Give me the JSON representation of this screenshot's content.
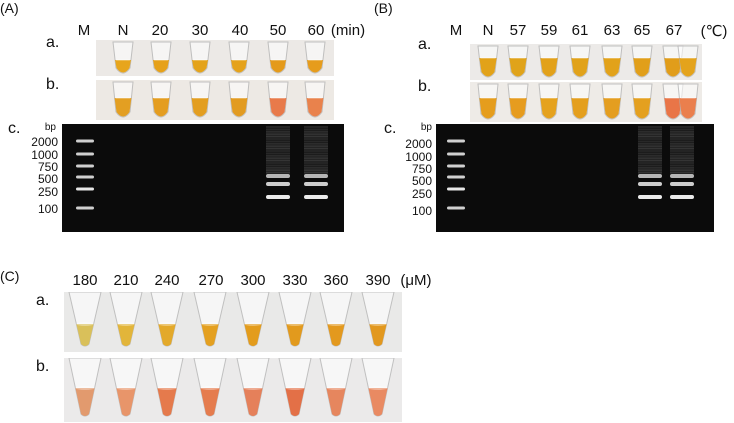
{
  "panel_a": {
    "label": "(A)",
    "lane_labels": [
      "M",
      "N",
      "20",
      "30",
      "40",
      "50",
      "60"
    ],
    "unit": "(min)",
    "row_a_label": "a.",
    "row_b_label": "b.",
    "row_c_label": "c.",
    "bp_unit": "bp",
    "ladder": [
      "2000",
      "1000",
      "750",
      "500",
      "250",
      "100"
    ],
    "row_a_colors": [
      "#e7a51c",
      "#e6a11a",
      "#e4a31b",
      "#e5a21b",
      "#e49a1a",
      "#e69c1c"
    ],
    "row_b_colors": [
      "#e39f22",
      "#e49d20",
      "#e39e20",
      "#e29b21",
      "#e87a4a",
      "#e9824c"
    ],
    "amplified_lanes": [
      5,
      6
    ]
  },
  "panel_b": {
    "label": "(B)",
    "lane_labels": [
      "M",
      "N",
      "57",
      "59",
      "61",
      "63",
      "65",
      "67"
    ],
    "unit": "(℃)",
    "row_a_label": "a.",
    "row_b_label": "b.",
    "row_c_label": "c.",
    "bp_unit": "bp",
    "ladder": [
      "2000",
      "1000",
      "750",
      "500",
      "250",
      "100"
    ],
    "row_a_colors": [
      "#e2a219",
      "#e0a31a",
      "#e2a11a",
      "#e1a21a",
      "#e2a21a",
      "#e19f1a",
      "#e19d1a",
      "#e4a31c"
    ],
    "row_b_colors": [
      "#e59d1d",
      "#e69c1f",
      "#e5a21e",
      "#e49f1e",
      "#e49e20",
      "#e4a01f",
      "#e97547",
      "#ea7f4d"
    ],
    "amplified_lanes": [
      6,
      7
    ]
  },
  "panel_c": {
    "label": "(C)",
    "concentrations": [
      "180",
      "210",
      "240",
      "270",
      "300",
      "330",
      "360",
      "390"
    ],
    "unit": "(μM)",
    "row_a_label": "a.",
    "row_b_label": "b.",
    "row_a_colors": [
      "#d9c05a",
      "#e2b53a",
      "#e3a92a",
      "#e4a020",
      "#e39c1c",
      "#e29a1d",
      "#e3991e",
      "#e2981e"
    ],
    "row_b_colors": [
      "#e29a6e",
      "#e8956a",
      "#e57a4c",
      "#e57c4e",
      "#e5805a",
      "#e37047",
      "#e6865e",
      "#e98a62"
    ]
  }
}
